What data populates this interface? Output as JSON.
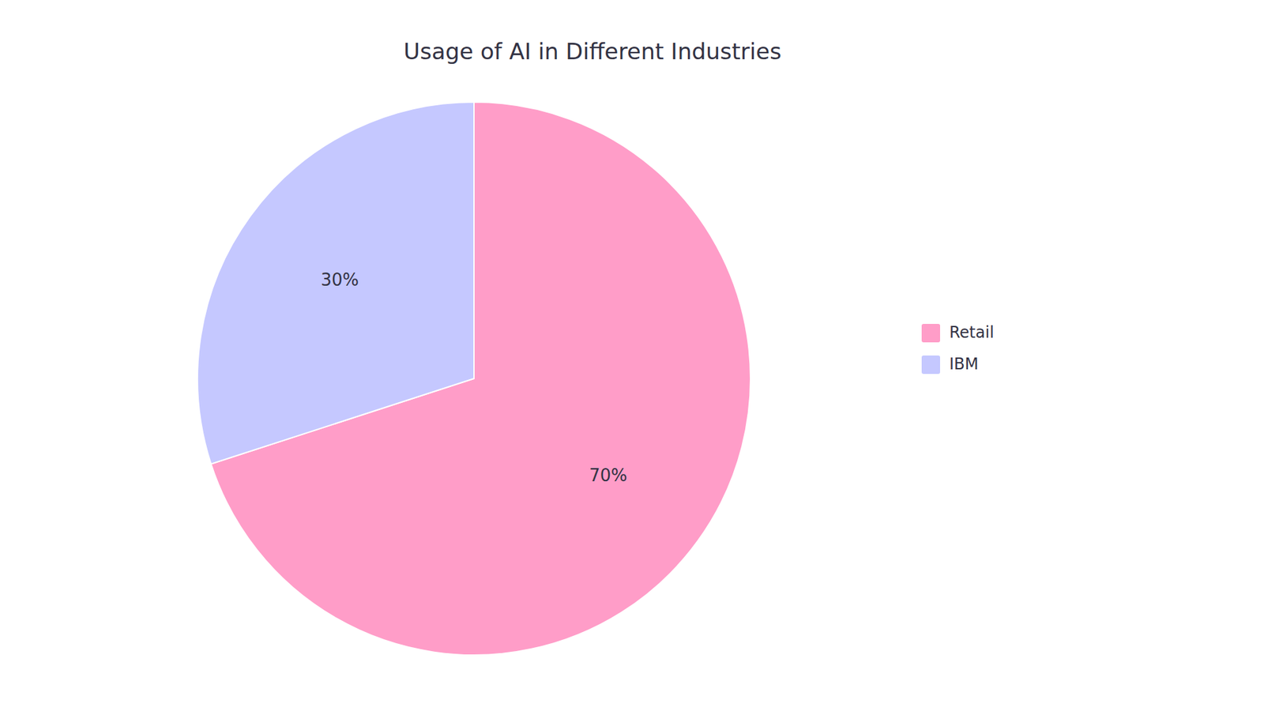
{
  "chart_data": {
    "type": "pie",
    "title": "Usage of AI in Different Industries",
    "categories": [
      "Retail",
      "IBM"
    ],
    "values": [
      70,
      30
    ],
    "value_labels": [
      "70%",
      "30%"
    ],
    "colors": [
      "#FF9DC8",
      "#C5C8FF"
    ],
    "data_labels": true,
    "legend": "right"
  }
}
